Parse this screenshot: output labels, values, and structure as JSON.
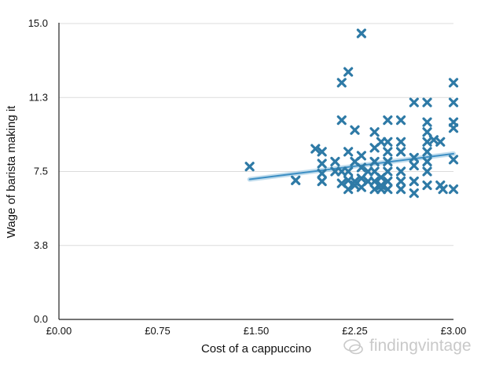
{
  "chart_data": {
    "type": "scatter",
    "title": "",
    "xlabel": "Cost of a cappuccino",
    "ylabel": "Wage of barista making it",
    "xlim": [
      0,
      3
    ],
    "ylim": [
      0,
      15
    ],
    "x_ticks": [
      {
        "value": 0,
        "label": "£0.00"
      },
      {
        "value": 0.75,
        "label": "£0.75"
      },
      {
        "value": 1.5,
        "label": "£1.50"
      },
      {
        "value": 2.25,
        "label": "£2.25"
      },
      {
        "value": 3.0,
        "label": "£3.00"
      }
    ],
    "y_ticks": [
      {
        "value": 0,
        "label": "0.0"
      },
      {
        "value": 3.75,
        "label": "3.8"
      },
      {
        "value": 7.5,
        "label": "7.5"
      },
      {
        "value": 11.25,
        "label": "11.3"
      },
      {
        "value": 15,
        "label": "15.0"
      }
    ],
    "grid": true,
    "marker": "x",
    "series": [
      {
        "color": "#2e7aa6",
        "points": [
          [
            1.45,
            7.75
          ],
          [
            1.8,
            7.05
          ],
          [
            1.95,
            8.65
          ],
          [
            2.0,
            8.5
          ],
          [
            2.0,
            7.9
          ],
          [
            2.0,
            7.4
          ],
          [
            2.0,
            7.0
          ],
          [
            2.1,
            8.0
          ],
          [
            2.1,
            7.5
          ],
          [
            2.15,
            12.0
          ],
          [
            2.15,
            10.1
          ],
          [
            2.15,
            7.5
          ],
          [
            2.15,
            6.9
          ],
          [
            2.2,
            12.55
          ],
          [
            2.2,
            8.5
          ],
          [
            2.2,
            7.5
          ],
          [
            2.2,
            7.05
          ],
          [
            2.2,
            6.6
          ],
          [
            2.25,
            9.6
          ],
          [
            2.25,
            8.0
          ],
          [
            2.25,
            7.0
          ],
          [
            2.25,
            6.8
          ],
          [
            2.3,
            14.5
          ],
          [
            2.3,
            8.3
          ],
          [
            2.3,
            7.7
          ],
          [
            2.3,
            7.15
          ],
          [
            2.3,
            6.7
          ],
          [
            2.35,
            7.5
          ],
          [
            2.35,
            7.0
          ],
          [
            2.4,
            9.5
          ],
          [
            2.4,
            8.7
          ],
          [
            2.4,
            8.0
          ],
          [
            2.4,
            7.5
          ],
          [
            2.4,
            7.0
          ],
          [
            2.4,
            6.6
          ],
          [
            2.45,
            9.0
          ],
          [
            2.45,
            7.2
          ],
          [
            2.45,
            6.8
          ],
          [
            2.45,
            6.6
          ],
          [
            2.5,
            10.1
          ],
          [
            2.5,
            9.0
          ],
          [
            2.5,
            8.5
          ],
          [
            2.5,
            8.0
          ],
          [
            2.5,
            7.5
          ],
          [
            2.5,
            7.0
          ],
          [
            2.5,
            6.6
          ],
          [
            2.6,
            10.1
          ],
          [
            2.6,
            9.0
          ],
          [
            2.6,
            8.5
          ],
          [
            2.6,
            7.5
          ],
          [
            2.6,
            7.0
          ],
          [
            2.6,
            6.6
          ],
          [
            2.7,
            11.0
          ],
          [
            2.7,
            8.2
          ],
          [
            2.7,
            7.8
          ],
          [
            2.7,
            7.0
          ],
          [
            2.7,
            6.4
          ],
          [
            2.8,
            11.0
          ],
          [
            2.8,
            10.0
          ],
          [
            2.8,
            9.5
          ],
          [
            2.8,
            9.0
          ],
          [
            2.8,
            8.5
          ],
          [
            2.8,
            8.0
          ],
          [
            2.8,
            7.5
          ],
          [
            2.8,
            6.8
          ],
          [
            2.85,
            9.1
          ],
          [
            2.9,
            9.0
          ],
          [
            2.9,
            6.8
          ],
          [
            2.92,
            6.6
          ],
          [
            3.0,
            12.0
          ],
          [
            3.0,
            11.0
          ],
          [
            3.0,
            10.0
          ],
          [
            3.0,
            9.7
          ],
          [
            3.0,
            8.1
          ],
          [
            3.0,
            6.6
          ]
        ]
      }
    ],
    "trendline": {
      "color": "#3d8fc4",
      "x": [
        1.45,
        3.0
      ],
      "y": [
        7.1,
        8.4
      ]
    }
  },
  "watermark": {
    "text": "findingvintage"
  }
}
